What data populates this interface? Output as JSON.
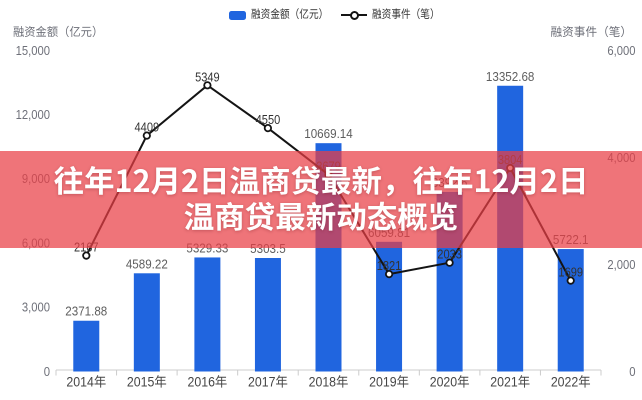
{
  "overlay": {
    "title_line1": "往年12月2日温商贷最新，往年12月2日",
    "title_line2": "温商贷最新动态概览",
    "background_color": "#e93e45",
    "background_opacity": 0.72,
    "text_color": "#ffffff"
  },
  "chart_data": {
    "type": "combo-bar-line",
    "categories": [
      "2014年",
      "2015年",
      "2016年",
      "2017年",
      "2018年",
      "2019年",
      "2020年",
      "2021年",
      "2022年"
    ],
    "series": [
      {
        "name": "融资金额（亿元）",
        "type": "bar",
        "axis": "left",
        "color": "#2065df",
        "values": [
          2371.88,
          4589.22,
          5329.33,
          5303.5,
          10669.14,
          6059.81,
          8392.6,
          13352.68,
          5722.1
        ],
        "labels": [
          "2371.88",
          "4589.22",
          "5329.33",
          "5303.5",
          "10669.14",
          "6059.81",
          "8392.6",
          "13352.68",
          "5722.1"
        ]
      },
      {
        "name": "融资事件（笔）",
        "type": "line",
        "axis": "right",
        "color": "#141414",
        "values": [
          2167,
          4409,
          5349,
          4550,
          3679,
          1821,
          2033,
          3804,
          1699
        ],
        "labels": [
          "2167",
          "4409",
          "5349",
          "4550",
          "3679",
          "1821",
          "2033",
          "3804",
          "1699"
        ]
      }
    ],
    "left_axis": {
      "name": "融资金额（亿元）",
      "min": 0,
      "max": 15000,
      "tick_labels": [
        "0",
        "3,000",
        "6,000",
        "9,000",
        "12,000",
        "15,000"
      ]
    },
    "right_axis": {
      "name": "融资事件（笔）",
      "min": 0,
      "max": 6000,
      "tick_labels": [
        "0",
        "2,000",
        "4,000",
        "6,000"
      ]
    },
    "legend": [
      {
        "label": "融资金额（亿元）",
        "icon": "bar-swatch"
      },
      {
        "label": "融资事件（笔）",
        "icon": "line-marker"
      }
    ],
    "grid_lines": false,
    "background": "#ffffff"
  }
}
